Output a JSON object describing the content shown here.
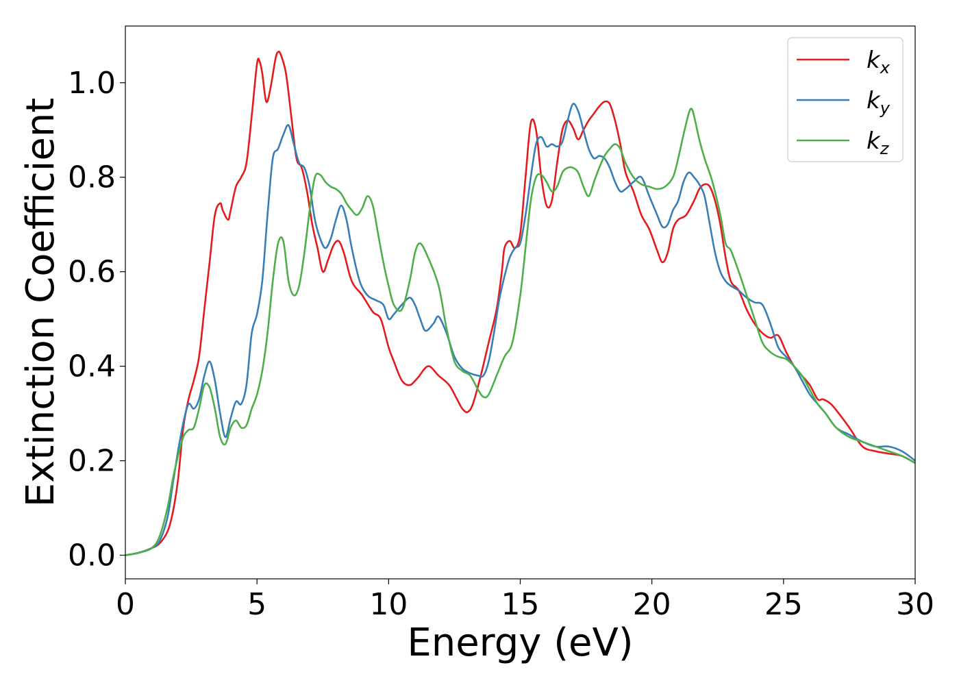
{
  "chart_data": {
    "type": "line",
    "title": "",
    "xlabel": "Energy (eV)",
    "ylabel": "Extinction Coefficient",
    "xlim": [
      0,
      30
    ],
    "ylim": [
      -0.05,
      1.12
    ],
    "xticks": [
      0,
      5,
      10,
      15,
      20,
      25,
      30
    ],
    "xtick_labels": [
      "0",
      "5",
      "10",
      "15",
      "20",
      "25",
      "30"
    ],
    "yticks": [
      0.0,
      0.2,
      0.4,
      0.6,
      0.8,
      1.0
    ],
    "ytick_labels": [
      "0.0",
      "0.2",
      "0.4",
      "0.6",
      "0.8",
      "1.0"
    ],
    "grid": false,
    "legend_position": "top-right",
    "series": [
      {
        "name": "k",
        "subscript": "x",
        "color": "#e41a1c",
        "x": [
          0,
          0.5,
          1.0,
          1.3,
          1.6,
          1.8,
          2.0,
          2.2,
          2.4,
          2.6,
          2.8,
          3.0,
          3.2,
          3.4,
          3.6,
          3.7,
          3.9,
          4.0,
          4.2,
          4.4,
          4.6,
          4.8,
          5.0,
          5.1,
          5.2,
          5.35,
          5.5,
          5.7,
          5.8,
          5.9,
          6.1,
          6.3,
          6.5,
          6.7,
          6.9,
          7.1,
          7.3,
          7.5,
          7.7,
          7.9,
          8.1,
          8.3,
          8.6,
          9.0,
          9.4,
          9.7,
          10.0,
          10.2,
          10.5,
          10.8,
          11.1,
          11.5,
          11.9,
          12.3,
          12.6,
          12.8,
          13.0,
          13.2,
          13.5,
          13.8,
          14.1,
          14.3,
          14.4,
          14.6,
          14.8,
          15.0,
          15.2,
          15.4,
          15.6,
          15.8,
          16.0,
          16.2,
          16.4,
          16.6,
          16.8,
          17.0,
          17.2,
          17.4,
          17.6,
          17.8,
          18.0,
          18.2,
          18.4,
          18.6,
          18.8,
          19.0,
          19.3,
          19.6,
          19.9,
          20.2,
          20.4,
          20.6,
          20.8,
          21.0,
          21.3,
          21.6,
          21.8,
          22.0,
          22.2,
          22.4,
          22.6,
          22.8,
          23.0,
          23.3,
          23.6,
          23.9,
          24.2,
          24.5,
          24.8,
          25.1,
          25.4,
          25.7,
          26.0,
          26.3,
          26.5,
          26.8,
          27.1,
          27.5,
          28.0,
          28.5,
          29.0,
          29.5,
          30.0
        ],
        "y": [
          0,
          0.005,
          0.015,
          0.025,
          0.05,
          0.09,
          0.16,
          0.27,
          0.33,
          0.37,
          0.42,
          0.52,
          0.62,
          0.72,
          0.745,
          0.73,
          0.71,
          0.73,
          0.78,
          0.8,
          0.83,
          0.93,
          1.04,
          1.045,
          1.02,
          0.96,
          0.985,
          1.05,
          1.065,
          1.06,
          1.02,
          0.93,
          0.84,
          0.82,
          0.77,
          0.7,
          0.65,
          0.6,
          0.625,
          0.655,
          0.665,
          0.64,
          0.58,
          0.55,
          0.515,
          0.5,
          0.44,
          0.41,
          0.37,
          0.36,
          0.375,
          0.4,
          0.38,
          0.36,
          0.33,
          0.31,
          0.303,
          0.32,
          0.38,
          0.45,
          0.52,
          0.6,
          0.65,
          0.665,
          0.65,
          0.68,
          0.8,
          0.915,
          0.9,
          0.8,
          0.74,
          0.75,
          0.83,
          0.9,
          0.92,
          0.905,
          0.88,
          0.9,
          0.92,
          0.935,
          0.95,
          0.96,
          0.955,
          0.92,
          0.87,
          0.81,
          0.77,
          0.72,
          0.69,
          0.645,
          0.62,
          0.64,
          0.69,
          0.71,
          0.72,
          0.75,
          0.775,
          0.785,
          0.78,
          0.75,
          0.7,
          0.63,
          0.58,
          0.56,
          0.52,
          0.49,
          0.47,
          0.46,
          0.465,
          0.43,
          0.4,
          0.38,
          0.36,
          0.33,
          0.33,
          0.32,
          0.3,
          0.27,
          0.23,
          0.22,
          0.215,
          0.21,
          0.195
        ]
      },
      {
        "name": "k",
        "subscript": "y",
        "color": "#377eb8",
        "x": [
          0,
          0.5,
          1.0,
          1.3,
          1.6,
          1.8,
          2.0,
          2.2,
          2.4,
          2.6,
          2.8,
          3.0,
          3.2,
          3.4,
          3.6,
          3.8,
          4.0,
          4.2,
          4.4,
          4.6,
          4.8,
          5.0,
          5.2,
          5.4,
          5.6,
          5.8,
          6.0,
          6.2,
          6.4,
          6.6,
          6.8,
          7.0,
          7.2,
          7.4,
          7.6,
          7.8,
          8.0,
          8.2,
          8.4,
          8.6,
          8.9,
          9.2,
          9.5,
          9.8,
          10.0,
          10.2,
          10.5,
          10.8,
          11.0,
          11.2,
          11.4,
          11.7,
          11.9,
          12.2,
          12.5,
          12.8,
          13.1,
          13.4,
          13.6,
          13.8,
          14.0,
          14.2,
          14.4,
          14.6,
          14.8,
          15.0,
          15.2,
          15.4,
          15.6,
          15.8,
          16.0,
          16.2,
          16.4,
          16.6,
          16.8,
          17.0,
          17.2,
          17.4,
          17.6,
          17.8,
          18.0,
          18.2,
          18.4,
          18.6,
          18.8,
          19.0,
          19.3,
          19.6,
          19.9,
          20.2,
          20.4,
          20.6,
          20.8,
          21.0,
          21.2,
          21.4,
          21.6,
          21.8,
          22.0,
          22.2,
          22.4,
          22.6,
          22.8,
          23.0,
          23.3,
          23.6,
          23.9,
          24.2,
          24.5,
          24.8,
          25.1,
          25.4,
          25.7,
          26.0,
          26.3,
          26.6,
          27.0,
          27.5,
          28.0,
          28.5,
          29.0,
          29.5,
          30.0
        ],
        "y": [
          0,
          0.005,
          0.015,
          0.03,
          0.08,
          0.15,
          0.22,
          0.28,
          0.32,
          0.31,
          0.33,
          0.38,
          0.41,
          0.37,
          0.3,
          0.25,
          0.29,
          0.325,
          0.32,
          0.36,
          0.47,
          0.51,
          0.58,
          0.72,
          0.84,
          0.86,
          0.89,
          0.91,
          0.87,
          0.83,
          0.82,
          0.78,
          0.71,
          0.67,
          0.65,
          0.67,
          0.71,
          0.74,
          0.71,
          0.65,
          0.58,
          0.55,
          0.54,
          0.53,
          0.5,
          0.51,
          0.53,
          0.545,
          0.53,
          0.5,
          0.475,
          0.49,
          0.505,
          0.47,
          0.42,
          0.395,
          0.385,
          0.38,
          0.38,
          0.41,
          0.47,
          0.54,
          0.59,
          0.63,
          0.65,
          0.66,
          0.72,
          0.8,
          0.87,
          0.885,
          0.865,
          0.87,
          0.865,
          0.875,
          0.92,
          0.955,
          0.94,
          0.9,
          0.86,
          0.84,
          0.845,
          0.84,
          0.82,
          0.79,
          0.77,
          0.775,
          0.79,
          0.8,
          0.76,
          0.72,
          0.695,
          0.7,
          0.73,
          0.75,
          0.79,
          0.81,
          0.8,
          0.785,
          0.76,
          0.7,
          0.64,
          0.6,
          0.58,
          0.57,
          0.56,
          0.545,
          0.535,
          0.53,
          0.49,
          0.44,
          0.42,
          0.4,
          0.37,
          0.34,
          0.32,
          0.3,
          0.27,
          0.255,
          0.24,
          0.23,
          0.23,
          0.22,
          0.2
        ]
      },
      {
        "name": "k",
        "subscript": "z",
        "color": "#4daf4a",
        "x": [
          0,
          0.5,
          1.0,
          1.3,
          1.6,
          1.8,
          2.0,
          2.2,
          2.4,
          2.6,
          2.8,
          3.0,
          3.2,
          3.4,
          3.6,
          3.8,
          4.0,
          4.2,
          4.4,
          4.6,
          4.8,
          5.0,
          5.2,
          5.4,
          5.6,
          5.8,
          6.0,
          6.2,
          6.4,
          6.6,
          6.8,
          7.0,
          7.2,
          7.4,
          7.6,
          7.8,
          8.0,
          8.2,
          8.4,
          8.6,
          8.8,
          9.0,
          9.2,
          9.4,
          9.6,
          9.8,
          10.0,
          10.2,
          10.5,
          10.8,
          11.0,
          11.2,
          11.5,
          11.9,
          12.2,
          12.5,
          12.8,
          13.1,
          13.4,
          13.6,
          13.8,
          14.1,
          14.4,
          14.7,
          15.0,
          15.2,
          15.4,
          15.6,
          15.8,
          16.0,
          16.2,
          16.4,
          16.6,
          16.8,
          17.0,
          17.2,
          17.4,
          17.6,
          17.8,
          18.0,
          18.2,
          18.4,
          18.6,
          18.8,
          19.0,
          19.3,
          19.6,
          19.9,
          20.2,
          20.5,
          20.8,
          21.0,
          21.2,
          21.4,
          21.5,
          21.6,
          21.8,
          22.0,
          22.3,
          22.6,
          22.8,
          23.0,
          23.3,
          23.6,
          23.9,
          24.2,
          24.5,
          24.8,
          25.1,
          25.4,
          25.7,
          26.0,
          26.3,
          26.6,
          27.0,
          27.5,
          28.0,
          28.5,
          29.0,
          29.5,
          30.0
        ],
        "y": [
          0,
          0.005,
          0.015,
          0.04,
          0.1,
          0.16,
          0.21,
          0.25,
          0.265,
          0.27,
          0.31,
          0.36,
          0.355,
          0.31,
          0.25,
          0.235,
          0.27,
          0.285,
          0.27,
          0.275,
          0.31,
          0.34,
          0.39,
          0.47,
          0.58,
          0.66,
          0.665,
          0.58,
          0.55,
          0.57,
          0.64,
          0.73,
          0.8,
          0.805,
          0.79,
          0.78,
          0.775,
          0.765,
          0.745,
          0.73,
          0.72,
          0.735,
          0.76,
          0.74,
          0.68,
          0.62,
          0.57,
          0.53,
          0.52,
          0.58,
          0.64,
          0.66,
          0.63,
          0.57,
          0.48,
          0.41,
          0.39,
          0.38,
          0.35,
          0.335,
          0.34,
          0.38,
          0.42,
          0.45,
          0.55,
          0.65,
          0.75,
          0.8,
          0.805,
          0.79,
          0.77,
          0.78,
          0.81,
          0.82,
          0.82,
          0.81,
          0.78,
          0.76,
          0.79,
          0.82,
          0.845,
          0.86,
          0.87,
          0.86,
          0.83,
          0.8,
          0.785,
          0.78,
          0.775,
          0.78,
          0.8,
          0.84,
          0.89,
          0.935,
          0.945,
          0.93,
          0.88,
          0.84,
          0.79,
          0.72,
          0.66,
          0.645,
          0.6,
          0.55,
          0.5,
          0.45,
          0.43,
          0.42,
          0.415,
          0.4,
          0.38,
          0.35,
          0.32,
          0.3,
          0.27,
          0.25,
          0.24,
          0.23,
          0.22,
          0.21,
          0.195
        ]
      }
    ]
  }
}
